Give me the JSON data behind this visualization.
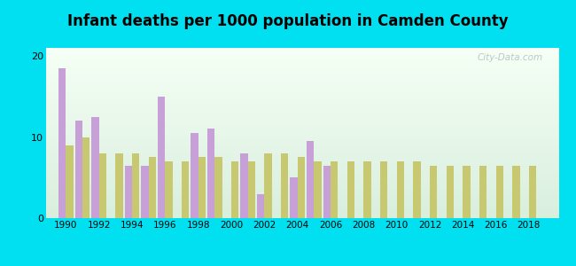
{
  "title": "Infant deaths per 1000 population in Camden County",
  "years": [
    1990,
    1991,
    1992,
    1993,
    1994,
    1995,
    1996,
    1997,
    1998,
    1999,
    2000,
    2001,
    2002,
    2003,
    2004,
    2005,
    2006,
    2007,
    2008,
    2009,
    2010,
    2011,
    2012,
    2013,
    2014,
    2015,
    2016,
    2017,
    2018
  ],
  "camden": [
    18.5,
    12.0,
    12.5,
    null,
    6.5,
    6.5,
    15.0,
    null,
    10.5,
    11.0,
    null,
    8.0,
    3.0,
    null,
    5.0,
    9.5,
    6.5,
    null,
    null,
    null,
    null,
    null,
    null,
    null,
    null,
    null,
    null,
    null,
    null
  ],
  "missouri": [
    9.0,
    10.0,
    8.0,
    8.0,
    8.0,
    7.5,
    7.0,
    7.0,
    7.5,
    7.5,
    7.0,
    7.0,
    8.0,
    8.0,
    7.5,
    7.0,
    7.0,
    7.0,
    7.0,
    7.0,
    7.0,
    7.0,
    6.5,
    6.5,
    6.5,
    6.5,
    6.5,
    6.5,
    6.5
  ],
  "camden_color": "#c8a0d8",
  "missouri_color": "#c8c870",
  "bg_outer": "#00e0f0",
  "ylim": [
    0,
    21
  ],
  "yticks": [
    0,
    10,
    20
  ],
  "bar_width": 0.45,
  "title_fontsize": 12,
  "xtick_years": [
    1990,
    1992,
    1994,
    1996,
    1998,
    2000,
    2002,
    2004,
    2006,
    2008,
    2010,
    2012,
    2014,
    2016,
    2018
  ]
}
